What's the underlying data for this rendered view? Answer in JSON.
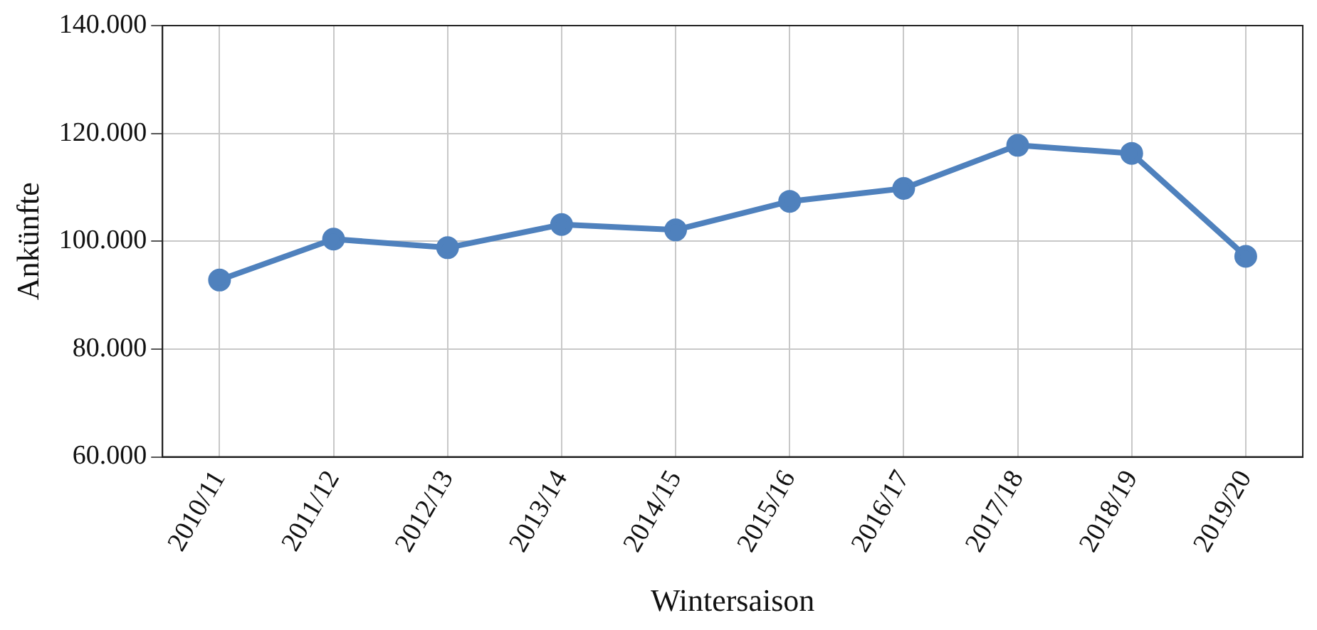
{
  "chart_data": {
    "type": "line",
    "xlabel": "Wintersaison",
    "ylabel": "Ankünfte",
    "categories": [
      "2010/11",
      "2011/12",
      "2012/13",
      "2013/14",
      "2014/15",
      "2015/16",
      "2016/17",
      "2017/18",
      "2018/19",
      "2019/20"
    ],
    "series": [
      {
        "color": "#4f81bd",
        "values": [
          92800,
          100400,
          98800,
          103100,
          102100,
          107400,
          109800,
          117800,
          116300,
          97200
        ]
      }
    ],
    "ylim": [
      60000,
      140000
    ],
    "yticks": [
      {
        "value": 60000,
        "label": "60.000"
      },
      {
        "value": 80000,
        "label": "80.000"
      },
      {
        "value": 100000,
        "label": "100.000"
      },
      {
        "value": 120000,
        "label": "120.000"
      },
      {
        "value": 140000,
        "label": "140.000"
      }
    ],
    "grid": true,
    "legend": false,
    "marker": "circle",
    "line_style": "solid"
  }
}
